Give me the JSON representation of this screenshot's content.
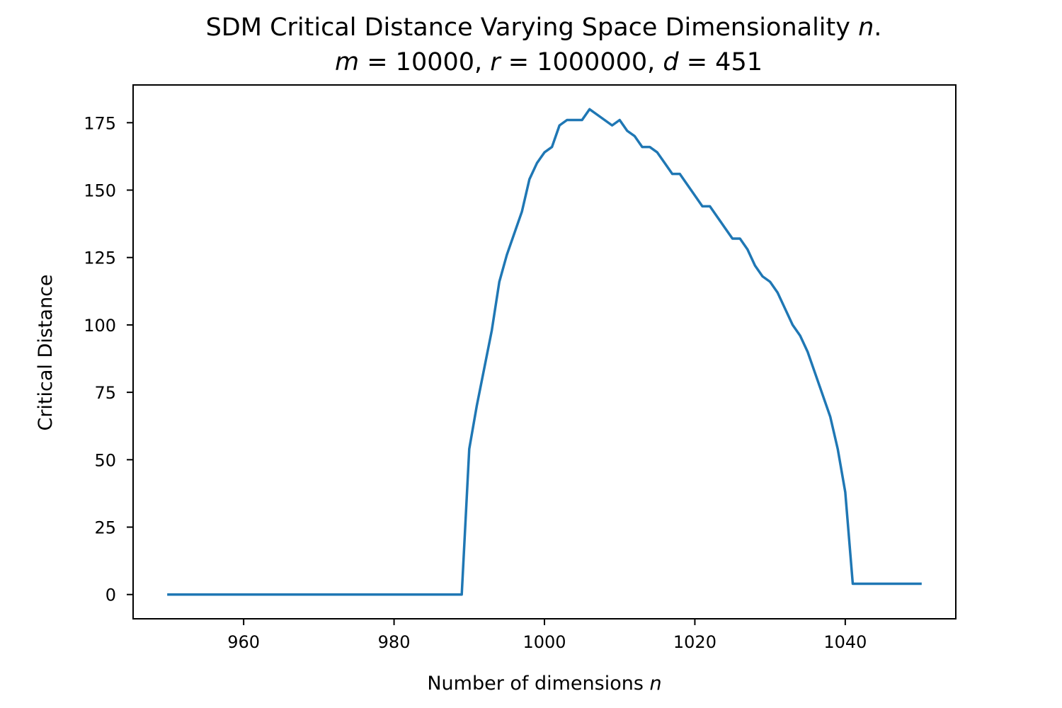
{
  "chart_data": {
    "type": "line",
    "title": {
      "line1_prefix": "SDM Critical Distance Varying Space Dimensionality ",
      "line1_var": "n",
      "line1_suffix": ".",
      "line2": [
        {
          "var": "m",
          "eq": " = 10000, "
        },
        {
          "var": "r",
          "eq": " = 1000000, "
        },
        {
          "var": "d",
          "eq": " = 451"
        }
      ]
    },
    "xlabel_prefix": "Number of dimensions ",
    "xlabel_var": "n",
    "ylabel": "Critical Distance",
    "xlim": [
      945.3,
      1054.7
    ],
    "ylim": [
      -9,
      189
    ],
    "xticks": [
      960,
      980,
      1000,
      1020,
      1040
    ],
    "yticks": [
      0,
      25,
      50,
      75,
      100,
      125,
      150,
      175
    ],
    "grid": false,
    "line_color": "#1f77b4",
    "x": [
      950,
      989,
      990,
      991,
      992,
      993,
      994,
      995,
      996,
      997,
      998,
      999,
      1000,
      1001,
      1002,
      1003,
      1004,
      1005,
      1006,
      1007,
      1008,
      1009,
      1010,
      1011,
      1012,
      1013,
      1014,
      1015,
      1016,
      1017,
      1018,
      1019,
      1020,
      1021,
      1022,
      1023,
      1024,
      1025,
      1026,
      1027,
      1028,
      1029,
      1030,
      1031,
      1032,
      1033,
      1034,
      1035,
      1036,
      1037,
      1038,
      1039,
      1040,
      1041,
      1042,
      1050
    ],
    "y": [
      0,
      0,
      54,
      70,
      84,
      98,
      116,
      126,
      134,
      142,
      154,
      160,
      164,
      166,
      174,
      176,
      176,
      176,
      180,
      178,
      176,
      174,
      176,
      172,
      170,
      166,
      166,
      164,
      160,
      156,
      156,
      152,
      148,
      144,
      144,
      140,
      136,
      132,
      132,
      128,
      122,
      118,
      116,
      112,
      106,
      100,
      96,
      90,
      82,
      74,
      66,
      54,
      38,
      4,
      4,
      4
    ]
  }
}
